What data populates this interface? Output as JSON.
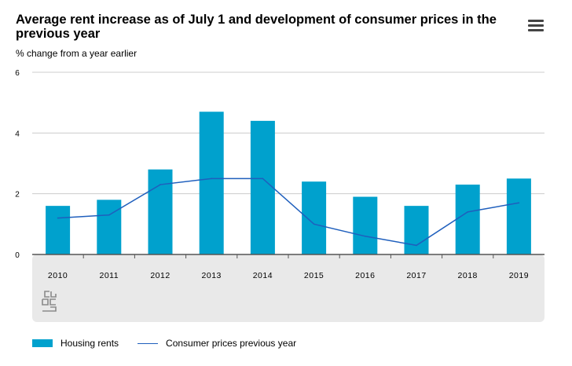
{
  "header": {
    "title": "Average rent increase as of July 1 and development of consumer prices in the previous year",
    "subtitle": "% change from a year earlier",
    "menu_icon": "hamburger-menu-icon"
  },
  "legend": {
    "items": [
      "Housing rents",
      "Consumer prices previous year"
    ]
  },
  "colors": {
    "bars": "#00a1cd",
    "line": "#1f5fbd",
    "panel": "#e9e9e9",
    "grid": "#cccccc",
    "axis": "#555555"
  },
  "chart_data": {
    "type": "bar",
    "categories": [
      "2010",
      "2011",
      "2012",
      "2013",
      "2014",
      "2015",
      "2016",
      "2017",
      "2018",
      "2019"
    ],
    "series": [
      {
        "name": "Housing rents",
        "type": "bar",
        "values": [
          1.6,
          1.8,
          2.8,
          4.7,
          4.4,
          2.4,
          1.9,
          1.6,
          2.3,
          2.5
        ]
      },
      {
        "name": "Consumer prices previous year",
        "type": "line",
        "values": [
          1.2,
          1.3,
          2.3,
          2.5,
          2.5,
          1.0,
          0.6,
          0.3,
          1.4,
          1.7
        ]
      }
    ],
    "yticks": [
      "0",
      "2",
      "4",
      "6"
    ],
    "ylim": [
      0,
      6
    ],
    "grid": true,
    "legend_position": "bottom-left"
  }
}
